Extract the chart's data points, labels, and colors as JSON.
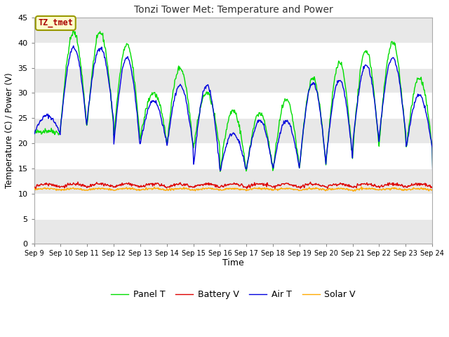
{
  "title": "Tonzi Tower Met: Temperature and Power",
  "xlabel": "Time",
  "ylabel": "Temperature (C) / Power (V)",
  "annotation": "TZ_tmet",
  "ylim": [
    0,
    45
  ],
  "yticks": [
    0,
    5,
    10,
    15,
    20,
    25,
    30,
    35,
    40,
    45
  ],
  "xtick_labels": [
    "Sep 9",
    "Sep 10",
    "Sep 11",
    "Sep 12",
    "Sep 13",
    "Sep 14",
    "Sep 15",
    "Sep 16",
    "Sep 17",
    "Sep 18",
    "Sep 19",
    "Sep 20",
    "Sep 21",
    "Sep 22",
    "Sep 23",
    "Sep 24"
  ],
  "legend_labels": [
    "Panel T",
    "Battery V",
    "Air T",
    "Solar V"
  ],
  "line_colors": [
    "#00dd00",
    "#dd0000",
    "#0000dd",
    "#ffaa00"
  ],
  "fig_bg": "#ffffff",
  "plot_bg": "#ffffff",
  "band_color": "#e8e8e8",
  "annotation_bg": "#ffffcc",
  "annotation_fg": "#aa0000",
  "annotation_border": "#999900",
  "panel_peaks": [
    22.5,
    42.0,
    42.0,
    39.5,
    30.0,
    35.0,
    30.0,
    26.5,
    26.0,
    28.5,
    33.0,
    36.0,
    38.5,
    40.0,
    33.0,
    13.5
  ],
  "panel_troughs": [
    22.0,
    23.5,
    24.0,
    21.5,
    21.0,
    20.0,
    19.0,
    14.5,
    15.0,
    15.0,
    15.5,
    17.0,
    19.0,
    21.0,
    19.0,
    13.5
  ],
  "air_peaks": [
    25.5,
    39.0,
    39.0,
    37.0,
    28.5,
    31.5,
    31.5,
    22.0,
    24.5,
    24.5,
    32.0,
    32.5,
    35.5,
    37.0,
    29.5,
    14.0
  ],
  "air_troughs": [
    22.0,
    23.5,
    25.0,
    20.0,
    20.0,
    19.5,
    15.5,
    14.5,
    15.0,
    15.0,
    16.0,
    17.5,
    20.5,
    22.0,
    19.0,
    13.5
  ],
  "battery_base": 11.3,
  "battery_amp": 0.6,
  "solar_base": 10.7,
  "solar_amp": 0.3
}
